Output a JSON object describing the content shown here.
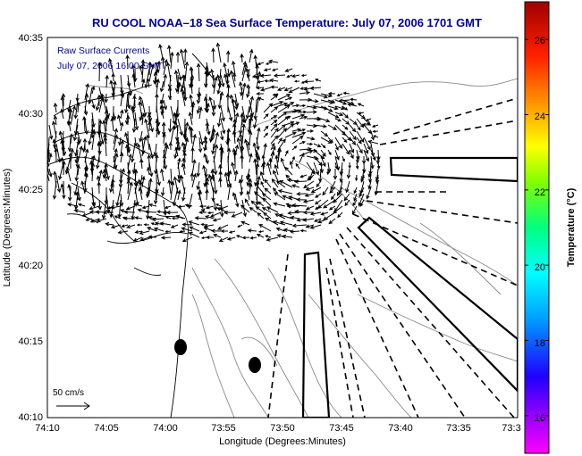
{
  "title": "RU COOL  NOAA–18  Sea Surface Temperature:  July 07, 2006 1701 GMT",
  "legend": {
    "line1": "Raw Surface Currents",
    "line2": "July 07, 2006 16:00 GMT"
  },
  "scale": {
    "label": "50 cm/s"
  },
  "axes": {
    "xlabel": "Longitude (Degrees:Minutes)",
    "ylabel": "Latitude (Degrees:Minutes)",
    "xticks": [
      "74:10",
      "74:05",
      "74:00",
      "73:55",
      "73:50",
      "73:45",
      "73:40",
      "73:35",
      "73:3"
    ],
    "yticks": [
      "40:35",
      "40:30",
      "40:25",
      "40:20",
      "40:15",
      "40:10"
    ]
  },
  "colorbar": {
    "label": "Temperature (°C)",
    "ticks": [
      "26",
      "24",
      "22",
      "20",
      "18",
      "16"
    ],
    "min": 15,
    "max": 27
  },
  "colors": {
    "title": "#00009a",
    "coast": "#000000",
    "bathymetry": "#8a8a8a",
    "arrows": "#000000"
  }
}
